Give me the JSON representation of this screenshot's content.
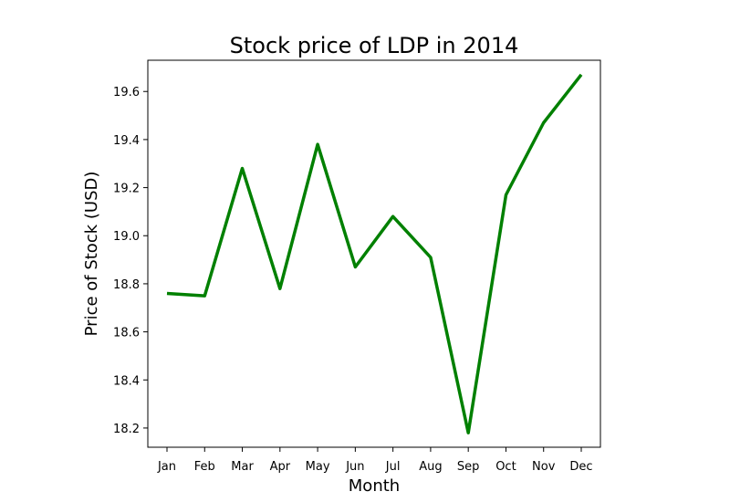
{
  "chart_data": {
    "type": "line",
    "title": "Stock price of LDP in 2014",
    "xlabel": "Month",
    "ylabel": "Price of Stock (USD)",
    "categories": [
      "Jan",
      "Feb",
      "Mar",
      "Apr",
      "May",
      "Jun",
      "Jul",
      "Aug",
      "Sep",
      "Oct",
      "Nov",
      "Dec"
    ],
    "series": [
      {
        "values": [
          18.76,
          18.75,
          19.28,
          18.78,
          19.38,
          18.87,
          19.08,
          18.91,
          18.18,
          19.17,
          19.47,
          19.67
        ],
        "color": "#008000"
      }
    ],
    "ylim": [
      18.12,
      19.73
    ],
    "yticks": [
      18.2,
      18.4,
      18.6,
      18.8,
      19.0,
      19.2,
      19.4,
      19.6
    ],
    "ytick_labels": [
      "18.2",
      "18.4",
      "18.6",
      "18.8",
      "19.0",
      "19.2",
      "19.4",
      "19.6"
    ],
    "grid": false,
    "legend": "none"
  }
}
